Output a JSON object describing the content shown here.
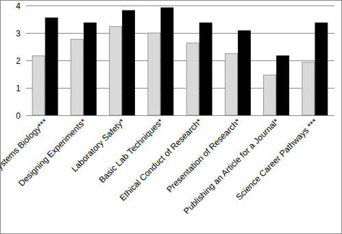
{
  "chart_data": {
    "type": "bar",
    "categories": [
      "Systems Biology***",
      "Designing Experiments*",
      "Laboratory Safety*",
      "Basic Lab Techniques*",
      "Ethical Conduct of Research*",
      "Presentation of Research*",
      "Publishing an Article for a Journal*",
      "Science Career Pathways ***"
    ],
    "series": [
      {
        "color": "#d9d9d9",
        "values": [
          2.17,
          2.77,
          3.23,
          3.0,
          2.63,
          2.25,
          1.47,
          1.93
        ]
      },
      {
        "color": "#000000",
        "values": [
          3.55,
          3.37,
          3.82,
          3.92,
          3.37,
          3.08,
          2.17,
          3.37
        ]
      }
    ],
    "ylim": [
      0,
      4
    ],
    "yticks": [
      0,
      1,
      2,
      3,
      4
    ],
    "grid": true
  }
}
